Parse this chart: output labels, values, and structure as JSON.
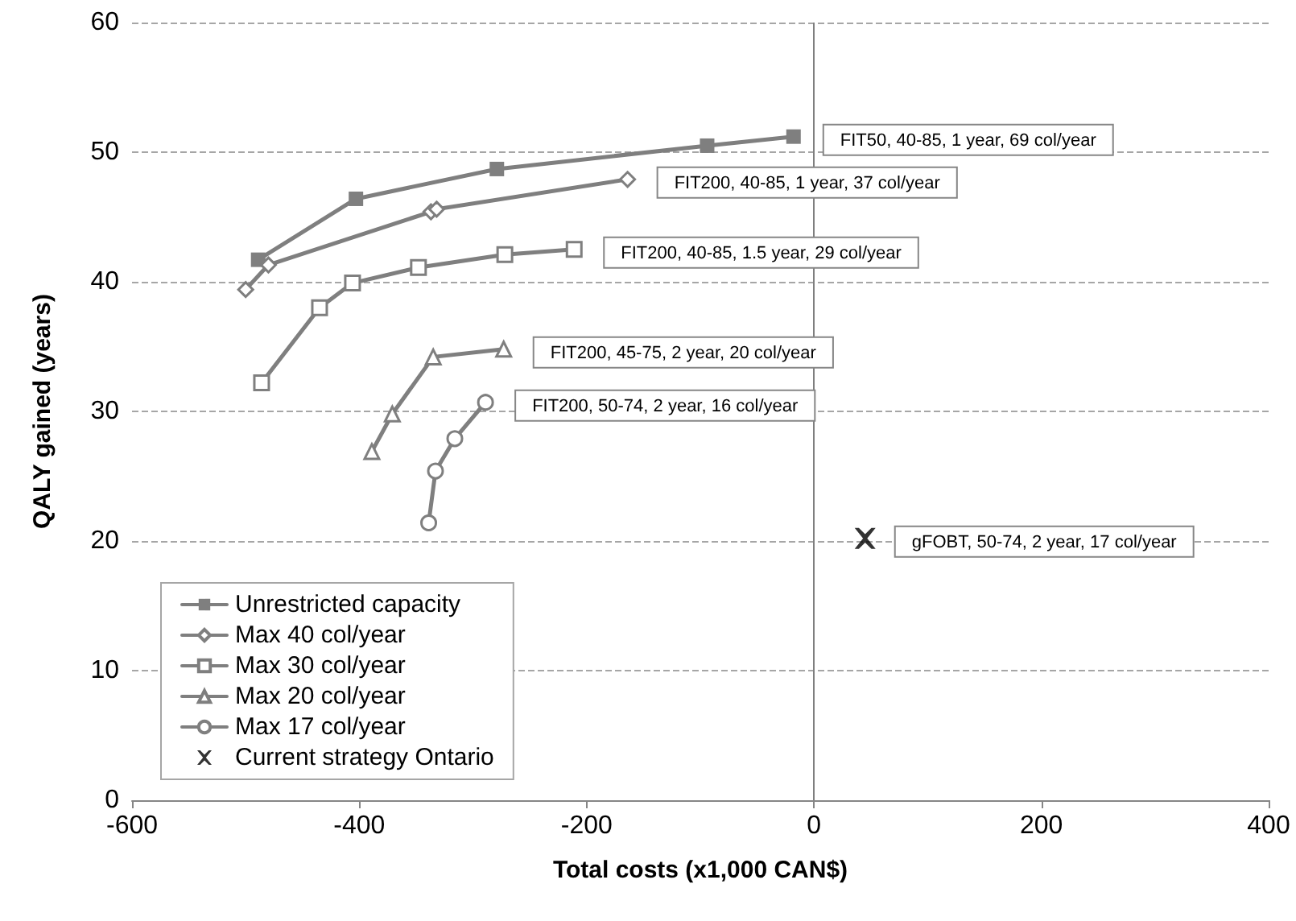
{
  "chart_data": {
    "type": "line",
    "xlabel": "Total costs (x1,000 CAN$)",
    "ylabel": "QALY gained (years)",
    "xlim": [
      -600,
      400
    ],
    "xticks": [
      -600,
      -400,
      -200,
      0,
      200,
      400
    ],
    "ylim": [
      0,
      60
    ],
    "yticks": [
      0,
      10,
      20,
      30,
      40,
      50,
      60
    ],
    "grid": "y",
    "legend": "bottom left",
    "line_style": "solid",
    "ref_lines": [
      {
        "axis": "x",
        "value": 0,
        "color": "#7f7f7f"
      }
    ],
    "series": [
      {
        "name": "Unrestricted capacity",
        "color": "#7f7f7f",
        "marker": "square",
        "x": [
          -489,
          -403,
          -279,
          -94,
          -18
        ],
        "values": [
          41.7,
          46.4,
          48.7,
          50.5,
          51.2
        ]
      },
      {
        "name": "Max 40 col/year",
        "color": "#7f7f7f",
        "marker": "diamond",
        "x": [
          -500,
          -480,
          -337,
          -332,
          -164
        ],
        "values": [
          39.4,
          41.3,
          45.4,
          45.6,
          47.9
        ]
      },
      {
        "name": "Max 30 col/year",
        "color": "#7f7f7f",
        "marker": "square",
        "x": [
          -486,
          -435,
          -406,
          -348,
          -272,
          -211
        ],
        "values": [
          32.2,
          38.0,
          39.9,
          41.1,
          42.1,
          42.5
        ]
      },
      {
        "name": "Max 20 col/year",
        "color": "#7f7f7f",
        "marker": "triangle",
        "x": [
          -389,
          -371,
          -335,
          -273
        ],
        "values": [
          26.9,
          29.8,
          34.2,
          34.8
        ]
      },
      {
        "name": "Max 17 col/year",
        "color": "#7f7f7f",
        "marker": "circle",
        "x": [
          -339,
          -333,
          -316,
          -289
        ],
        "values": [
          21.4,
          25.4,
          27.9,
          30.7
        ]
      },
      {
        "name": "Current strategy Ontario",
        "type": "scatter",
        "color": "#000000",
        "marker": "cross",
        "x": [
          45
        ],
        "values": [
          20.2
        ]
      }
    ],
    "annotations": [
      {
        "text": "FIT50, 40-85, 1 year, 69 col/year",
        "x": -18,
        "y": 51.2
      },
      {
        "text": "FIT200, 40-85, 1 year, 37 col/year",
        "x": -164,
        "y": 47.9
      },
      {
        "text": "FIT200, 40-85, 1.5 year, 29 col/year",
        "x": -211,
        "y": 42.5
      },
      {
        "text": "FIT200, 45-75, 2 year, 20 col/year",
        "x": -273,
        "y": 34.8
      },
      {
        "text": "FIT200, 50-74, 2 year, 16 col/year",
        "x": -289,
        "y": 30.7
      },
      {
        "text": "gFOBT, 50-74, 2 year, 17 col/year",
        "x": 45,
        "y": 20.2
      }
    ]
  }
}
